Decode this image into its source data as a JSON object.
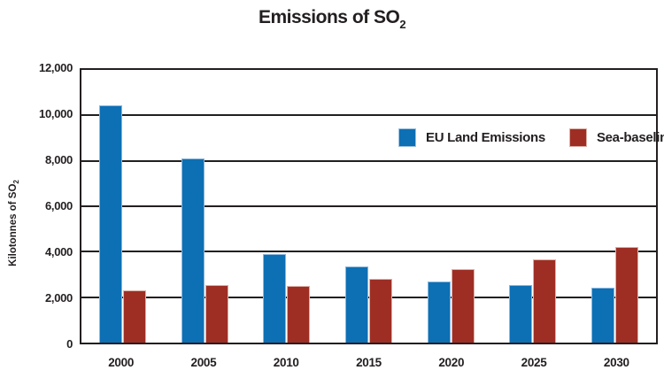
{
  "title": {
    "main": "Emissions of SO",
    "sub": "2"
  },
  "y_axis": {
    "label_main": "Kilotonnes of SO",
    "label_sub": "2"
  },
  "chart_data": {
    "type": "bar",
    "title": "Emissions of SO2",
    "xlabel": "",
    "ylabel": "Kilotonnes of SO2",
    "categories": [
      "2000",
      "2005",
      "2010",
      "2015",
      "2020",
      "2025",
      "2030"
    ],
    "series": [
      {
        "name": "EU Land Emissions",
        "color": "#0D6FB4",
        "values": [
          10450,
          8100,
          3900,
          3350,
          2700,
          2550,
          2400
        ]
      },
      {
        "name": "Sea-baseline",
        "color": "#9E2E24",
        "values": [
          2300,
          2550,
          2500,
          2800,
          3250,
          3650,
          4200
        ]
      }
    ],
    "ylim": [
      0,
      12000
    ],
    "ytick_interval": 2000,
    "ytick_labels": [
      "12,000",
      "10,000",
      "8,000",
      "6,000",
      "4,000",
      "2,000",
      "0"
    ],
    "grid": "horizontal-black-lines",
    "legend_position": "inside-upper-right",
    "colors": {
      "text": "#231F20",
      "gridline": "#231F20",
      "background": "#FFFFFF"
    }
  }
}
